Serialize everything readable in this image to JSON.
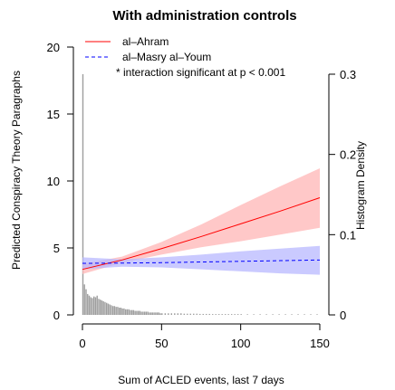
{
  "chart_data": {
    "type": "line",
    "title": "With administration controls",
    "xlabel": "Sum of ACLED events, last 7 days",
    "ylabel": "Predicted Conspiracy Theory Paragraphs",
    "y2label": "Histogram Density",
    "xlim": [
      0,
      150
    ],
    "ylim": [
      0,
      20
    ],
    "y2lim": [
      0,
      0.3
    ],
    "x_ticks": [
      0,
      50,
      100,
      150
    ],
    "y_ticks": [
      0,
      5,
      10,
      15,
      20
    ],
    "y2_ticks": [
      0,
      0.1,
      0.2,
      0.3
    ],
    "y2_tick_labels": [
      "0",
      "0.1",
      "0.2",
      "0.3"
    ],
    "legend_position": "top-left",
    "annotation": "* interaction significant at p < 0.001",
    "series": [
      {
        "name": "al–Ahram",
        "color": "#ff0000",
        "line_style": "solid",
        "band_color": "#ffb6b6",
        "x": [
          0,
          25,
          50,
          75,
          100,
          125,
          150
        ],
        "y": [
          3.4,
          4.1,
          4.95,
          5.85,
          6.8,
          7.75,
          8.75
        ],
        "lower": [
          3.05,
          3.9,
          4.5,
          5.05,
          5.5,
          6.0,
          6.5
        ],
        "upper": [
          3.8,
          4.35,
          5.45,
          6.75,
          8.2,
          9.6,
          10.95
        ]
      },
      {
        "name": "al–Masry al–Youm",
        "color": "#0000ff",
        "line_style": "dashed",
        "band_color": "#b8b8ff",
        "x": [
          0,
          25,
          50,
          75,
          100,
          125,
          150
        ],
        "y": [
          3.85,
          3.87,
          3.9,
          3.95,
          4.0,
          4.05,
          4.1
        ],
        "lower": [
          3.4,
          3.6,
          3.55,
          3.4,
          3.25,
          3.1,
          3.0
        ],
        "upper": [
          4.3,
          4.15,
          4.3,
          4.5,
          4.75,
          4.95,
          5.15
        ]
      }
    ],
    "histogram": {
      "color": "#9e9e9e",
      "x": [
        0,
        1,
        2,
        3,
        4,
        5,
        6,
        7,
        8,
        9,
        10,
        11,
        12,
        13,
        14,
        15,
        16,
        17,
        18,
        19,
        20,
        21,
        22,
        23,
        24,
        25,
        26,
        27,
        28,
        29,
        30,
        31,
        32,
        33,
        34,
        35,
        36,
        37,
        38,
        39,
        40,
        41,
        42,
        43,
        44,
        45,
        46,
        47,
        48,
        49,
        50,
        52,
        54,
        56,
        58,
        60,
        62,
        64,
        66,
        68,
        70,
        72,
        74,
        76,
        78,
        80,
        82,
        84,
        86,
        88,
        90,
        92,
        94,
        96,
        98,
        100,
        104,
        108,
        112,
        116,
        120,
        124,
        128,
        132,
        136,
        140,
        144,
        148
      ],
      "density": [
        0.3,
        0.038,
        0.032,
        0.026,
        0.024,
        0.022,
        0.021,
        0.023,
        0.022,
        0.024,
        0.02,
        0.019,
        0.018,
        0.017,
        0.016,
        0.015,
        0.014,
        0.013,
        0.012,
        0.011,
        0.011,
        0.01,
        0.01,
        0.009,
        0.009,
        0.008,
        0.008,
        0.007,
        0.007,
        0.007,
        0.006,
        0.006,
        0.006,
        0.005,
        0.005,
        0.005,
        0.005,
        0.004,
        0.004,
        0.004,
        0.004,
        0.004,
        0.003,
        0.003,
        0.003,
        0.003,
        0.003,
        0.003,
        0.003,
        0.002,
        0.002,
        0.002,
        0.002,
        0.002,
        0.002,
        0.002,
        0.002,
        0.0015,
        0.0015,
        0.0015,
        0.0015,
        0.0015,
        0.0012,
        0.0012,
        0.0012,
        0.0012,
        0.001,
        0.001,
        0.001,
        0.001,
        0.001,
        0.001,
        0.001,
        0.001,
        0.001,
        0.001,
        0.0008,
        0.0008,
        0.0008,
        0.0008,
        0.0008,
        0.0008,
        0.0008,
        0.0008,
        0.0008,
        0.0008,
        0.0008,
        0.0008
      ]
    }
  }
}
